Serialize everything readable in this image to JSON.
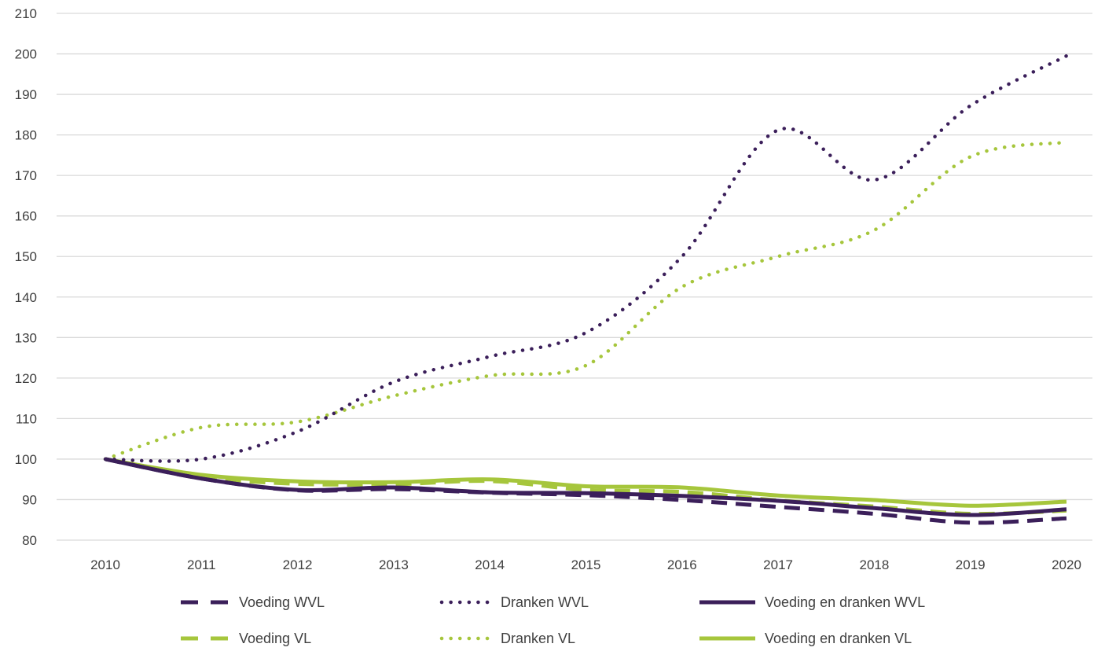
{
  "chart_data": {
    "type": "line",
    "x": [
      2010,
      2011,
      2012,
      2013,
      2014,
      2015,
      2016,
      2017,
      2018,
      2019,
      2020
    ],
    "ylim": [
      80,
      210
    ],
    "yticks": [
      80,
      90,
      100,
      110,
      120,
      130,
      140,
      150,
      160,
      170,
      180,
      190,
      200,
      210
    ],
    "grid": "horizontal",
    "legend_position": "bottom",
    "colors": {
      "dark": "#3b1f5a",
      "light": "#a6c63c",
      "grid": "#d9d9d9",
      "text": "#404040"
    },
    "series": [
      {
        "name": "Voeding WVL",
        "color": "#3b1f5a",
        "style": "dashed",
        "values": [
          100,
          95.2,
          92.3,
          92.6,
          91.7,
          91.1,
          89.9,
          88.2,
          86.5,
          84.3,
          85.4
        ]
      },
      {
        "name": "Dranken WVL",
        "color": "#3b1f5a",
        "style": "dotted",
        "values": [
          100,
          100,
          106.8,
          119,
          125.3,
          131.2,
          150,
          181.2,
          168.9,
          187.2,
          199.5
        ]
      },
      {
        "name": "Voeding en dranken WVL",
        "color": "#3b1f5a",
        "style": "solid",
        "values": [
          100,
          95.2,
          92.4,
          93,
          91.8,
          91.6,
          90.9,
          89.7,
          87.9,
          86.2,
          87.6
        ]
      },
      {
        "name": "Voeding VL",
        "color": "#a6c63c",
        "style": "dashed",
        "values": [
          100,
          95.6,
          93.9,
          93.8,
          94.6,
          92.4,
          91.9,
          89.8,
          88.3,
          86.5,
          87.3
        ]
      },
      {
        "name": "Dranken VL",
        "color": "#a6c63c",
        "style": "dotted",
        "values": [
          100,
          107.8,
          109.2,
          115.6,
          120.6,
          123.1,
          142.5,
          150,
          156.5,
          174.6,
          178.2
        ]
      },
      {
        "name": "Voeding en dranken VL",
        "color": "#a6c63c",
        "style": "solid",
        "values": [
          100,
          96.1,
          94.5,
          94.3,
          95,
          93.3,
          93,
          91,
          89.9,
          88.5,
          89.5
        ]
      }
    ]
  }
}
